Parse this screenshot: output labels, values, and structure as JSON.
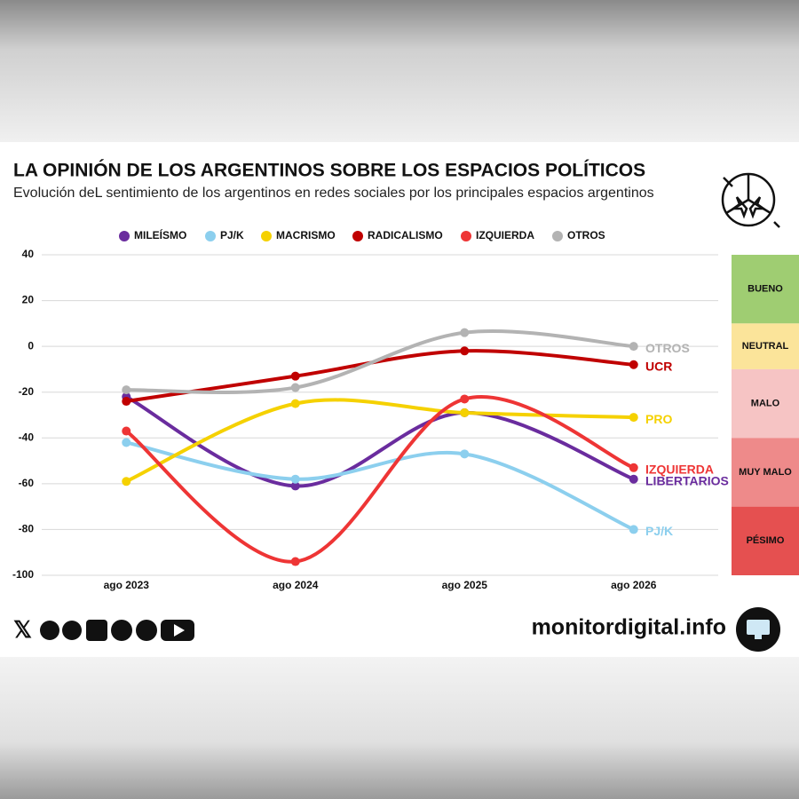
{
  "chart_data": {
    "type": "line",
    "title": "LA OPINIÓN DE LOS ARGENTINOS SOBRE LOS ESPACIOS POLÍTICOS",
    "subtitle": "Evolución deL sentimiento de los argentinos en redes sociales por los principales espacios argentinos",
    "categories": [
      "ago 2023",
      "ago 2024",
      "ago 2025",
      "ago 2026"
    ],
    "series": [
      {
        "name": "MILEÍSMO",
        "end_label": "LIBERTARIOS",
        "color": "#6a2c9e",
        "values": [
          -22,
          -61,
          -29,
          -58
        ]
      },
      {
        "name": "PJ/K",
        "end_label": "PJ/K",
        "color": "#8ccfee",
        "values": [
          -42,
          -58,
          -47,
          -80
        ]
      },
      {
        "name": "MACRISMO",
        "end_label": "PRO",
        "color": "#f5d100",
        "values": [
          -59,
          -25,
          -29,
          -31
        ]
      },
      {
        "name": "RADICALISMO",
        "end_label": "UCR",
        "color": "#c00000",
        "values": [
          -24,
          -13,
          -2,
          -8
        ]
      },
      {
        "name": "IZQUIERDA",
        "end_label": "IZQUIERDA",
        "color": "#ee3535",
        "values": [
          -37,
          -94,
          -23,
          -53
        ]
      },
      {
        "name": "OTROS",
        "end_label": "OTROS",
        "color": "#b3b3b3",
        "values": [
          -19,
          -18,
          6,
          0
        ]
      }
    ],
    "ylim": [
      -100,
      40
    ],
    "yticks": [
      40,
      20,
      0,
      -20,
      -40,
      -60,
      -80,
      -100
    ],
    "grid": true,
    "zones": [
      {
        "label": "BUENO",
        "from": 10,
        "to": 40,
        "color": "#9fcd72"
      },
      {
        "label": "NEUTRAL",
        "from": -10,
        "to": 10,
        "color": "#fbe49a"
      },
      {
        "label": "MALO",
        "from": -40,
        "to": -10,
        "color": "#f6c4c4"
      },
      {
        "label": "MUY MALO",
        "from": -70,
        "to": -40,
        "color": "#ee8a8a"
      },
      {
        "label": "PÉSIMO",
        "from": -100,
        "to": -70,
        "color": "#e55050"
      }
    ]
  },
  "footer": {
    "site": "monitordigital.info"
  }
}
